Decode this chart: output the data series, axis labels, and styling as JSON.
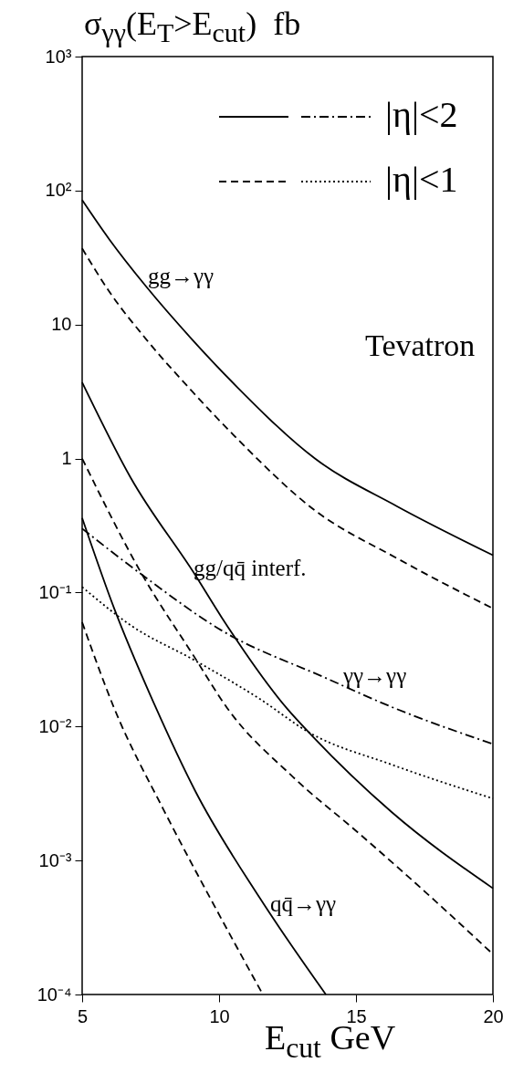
{
  "chart_data": {
    "type": "line",
    "ylabel": "σ$_{γγ}$(E$_{T}$>E$_{cut}$)  fb",
    "xlabel": "E$_{cut}$ GeV",
    "xlim": [
      5,
      20
    ],
    "xticks": [
      5,
      10,
      15,
      20
    ],
    "ylim": [
      0.0001,
      1000
    ],
    "log": "y",
    "yticks": [
      {
        "value": 0.0001,
        "label": "10⁻⁴"
      },
      {
        "value": 0.001,
        "label": "10⁻³"
      },
      {
        "value": 0.01,
        "label": "10⁻²"
      },
      {
        "value": 0.1,
        "label": "10⁻¹"
      },
      1,
      10,
      {
        "value": 100,
        "label": "10²"
      },
      {
        "value": 1000,
        "label": "10³"
      }
    ],
    "legend": "top right",
    "grid": false,
    "series": [
      {
        "color": "#000000",
        "line_style": "solid",
        "x": [
          5,
          6,
          7.33,
          9,
          10.67,
          13.5,
          16.5,
          20
        ],
        "values": [
          85,
          43,
          19.3,
          7.8,
          3.4,
          1.0,
          0.44,
          0.19
        ]
      },
      {
        "color": "#000000",
        "line_style": "dashed",
        "x": [
          5,
          6,
          7.33,
          9,
          10.67,
          13.5,
          16.5,
          20
        ],
        "values": [
          37,
          17.5,
          7.8,
          3.2,
          1.4,
          0.41,
          0.18,
          0.076
        ]
      },
      {
        "color": "#000000",
        "line_style": "solid",
        "x": [
          5,
          6.77,
          9.13,
          10.1,
          12.47,
          13.4,
          16.3,
          20
        ],
        "values": [
          3.7,
          0.72,
          0.135,
          0.065,
          0.0137,
          0.0085,
          0.0023,
          0.00062
        ]
      },
      {
        "color": "#000000",
        "line_style": "dashed",
        "x": [
          5,
          7.2,
          9.1,
          10.3,
          12.7,
          15.1,
          17.5,
          20
        ],
        "values": [
          1.0,
          0.135,
          0.033,
          0.0137,
          0.0042,
          0.0016,
          0.00059,
          0.0002
        ]
      },
      {
        "color": "#000000",
        "line_style": "solid",
        "x": [
          5,
          6.17,
          7.7,
          9.13,
          11.5,
          13.9
        ],
        "values": [
          0.36,
          0.076,
          0.0137,
          0.0033,
          0.00052,
          0.0001
        ]
      },
      {
        "color": "#000000",
        "line_style": "dashed",
        "x": [
          5,
          6.17,
          7.97,
          9.73,
          11.6
        ],
        "values": [
          0.06,
          0.0137,
          0.0024,
          0.0005,
          0.0001
        ]
      },
      {
        "name": "|η|<2",
        "color": "#000000",
        "line_style": "dashdot",
        "x": [
          5,
          7.2,
          10.1,
          13.9,
          16.3,
          20
        ],
        "values": [
          0.3,
          0.135,
          0.052,
          0.023,
          0.014,
          0.0074
        ]
      },
      {
        "name": "|η|<1",
        "color": "#000000",
        "line_style": "dotted",
        "x": [
          5,
          6.77,
          9.13,
          11.5,
          13.3,
          16.3,
          20
        ],
        "values": [
          0.11,
          0.057,
          0.031,
          0.016,
          0.009,
          0.0052,
          0.0029
        ]
      }
    ],
    "annotations": [
      "gg→γγ",
      "gg/qq̄ interf.",
      "γγ→γγ",
      "qq̄→γγ",
      "Tevatron"
    ]
  }
}
